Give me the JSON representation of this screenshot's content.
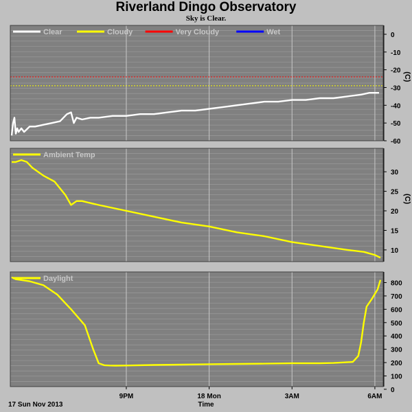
{
  "header": {
    "title": "Riverland Dingo Observatory",
    "subtitle": "Sky is Clear."
  },
  "footer": {
    "date": "17 Sun Nov 2013",
    "xlabel": "Time"
  },
  "colors": {
    "background": "#c0c0c0",
    "plot_background": "#808080",
    "grid": "#c8c8c8",
    "clear": "#ffffff",
    "cloudy": "#ffff00",
    "very_cloudy": "#ff0000",
    "wet": "#0000ff",
    "legend_text": "#c8c8c8"
  },
  "chart_data": [
    {
      "type": "line",
      "id": "sky-temp",
      "ylabel": "(C)",
      "ylim": [
        -60,
        5
      ],
      "yticks": [
        0,
        -10,
        -20,
        -30,
        -40,
        -50,
        -60
      ],
      "xlim": [
        16.8,
        30.3
      ],
      "grid": true,
      "legend_placement": "top-left",
      "legend": [
        {
          "name": "Clear",
          "color": "#ffffff"
        },
        {
          "name": "Cloudy",
          "color": "#ffff00"
        },
        {
          "name": "Very Cloudy",
          "color": "#ff0000"
        },
        {
          "name": "Wet",
          "color": "#0000ff"
        }
      ],
      "thresholds": [
        {
          "name": "Very Cloudy",
          "y": -24,
          "color": "#ff0000"
        },
        {
          "name": "Cloudy",
          "y": -29,
          "color": "#ffff00"
        }
      ],
      "series": [
        {
          "name": "Clear",
          "color": "#ffffff",
          "x": [
            16.85,
            16.9,
            16.95,
            17.0,
            17.05,
            17.1,
            17.2,
            17.3,
            17.5,
            17.7,
            18.0,
            18.3,
            18.6,
            18.85,
            19.0,
            19.1,
            19.2,
            19.4,
            19.7,
            20.0,
            20.5,
            21.0,
            21.5,
            22.0,
            22.5,
            23.0,
            23.5,
            24.0,
            24.5,
            25.0,
            25.5,
            26.0,
            26.5,
            27.0,
            27.5,
            28.0,
            28.5,
            29.0,
            29.5,
            29.8,
            30.0,
            30.15
          ],
          "y": [
            -57,
            -50,
            -47,
            -56,
            -53,
            -55,
            -53,
            -55,
            -52,
            -52,
            -51,
            -50,
            -49,
            -45,
            -44,
            -50,
            -47,
            -48,
            -47,
            -47,
            -46,
            -46,
            -45,
            -45,
            -44,
            -43,
            -43,
            -42,
            -41,
            -40,
            -39,
            -38,
            -38,
            -37,
            -37,
            -36,
            -36,
            -35,
            -34,
            -33,
            -33,
            -33
          ]
        }
      ]
    },
    {
      "type": "line",
      "id": "ambient-temp",
      "ylabel": "(C)",
      "ylim": [
        7,
        36
      ],
      "yticks": [
        30,
        25,
        20,
        15,
        10
      ],
      "xlim": [
        16.8,
        30.3
      ],
      "grid": true,
      "legend_placement": "top-left",
      "legend": [
        {
          "name": "Ambient Temp",
          "color": "#ffff00"
        }
      ],
      "series": [
        {
          "name": "Ambient Temp",
          "color": "#ffff00",
          "x": [
            16.85,
            17.0,
            17.2,
            17.4,
            17.6,
            18.0,
            18.4,
            18.8,
            19.0,
            19.2,
            19.4,
            19.7,
            20.0,
            21.0,
            22.0,
            23.0,
            24.0,
            25.0,
            26.0,
            27.0,
            28.0,
            29.0,
            29.6,
            30.0,
            30.2
          ],
          "y": [
            32.5,
            32.5,
            33,
            32.5,
            31,
            29,
            27.5,
            24,
            21.5,
            22.5,
            22.5,
            22,
            21.5,
            20,
            18.5,
            17,
            16,
            14.5,
            13.5,
            12,
            11,
            10,
            9.5,
            8.7,
            8
          ]
        }
      ]
    },
    {
      "type": "line",
      "id": "daylight",
      "ylabel": "",
      "ylim": [
        20,
        880
      ],
      "yticks": [
        800,
        700,
        600,
        500,
        400,
        300,
        200,
        100,
        0
      ],
      "xlim": [
        16.8,
        30.3
      ],
      "xticks": [
        {
          "x": 21,
          "label": "9PM"
        },
        {
          "x": 24,
          "label": "18 Mon"
        },
        {
          "x": 27,
          "label": "3AM"
        },
        {
          "x": 30,
          "label": "6AM"
        }
      ],
      "grid": true,
      "legend_placement": "top-left",
      "legend": [
        {
          "name": "Daylight",
          "color": "#ffff00"
        }
      ],
      "series": [
        {
          "name": "Daylight",
          "color": "#ffff00",
          "x": [
            16.85,
            17.0,
            17.5,
            18.0,
            18.5,
            19.0,
            19.5,
            19.8,
            20.0,
            20.2,
            20.4,
            20.6,
            21.0,
            22.0,
            23.0,
            24.0,
            25.0,
            26.0,
            27.0,
            28.0,
            28.5,
            29.2,
            29.4,
            29.5,
            29.6,
            29.7,
            29.9,
            30.1,
            30.2
          ],
          "y": [
            840,
            825,
            810,
            780,
            710,
            600,
            480,
            300,
            195,
            180,
            178,
            177,
            178,
            182,
            185,
            188,
            190,
            192,
            195,
            195,
            197,
            205,
            250,
            350,
            500,
            620,
            680,
            750,
            820
          ]
        }
      ]
    }
  ]
}
